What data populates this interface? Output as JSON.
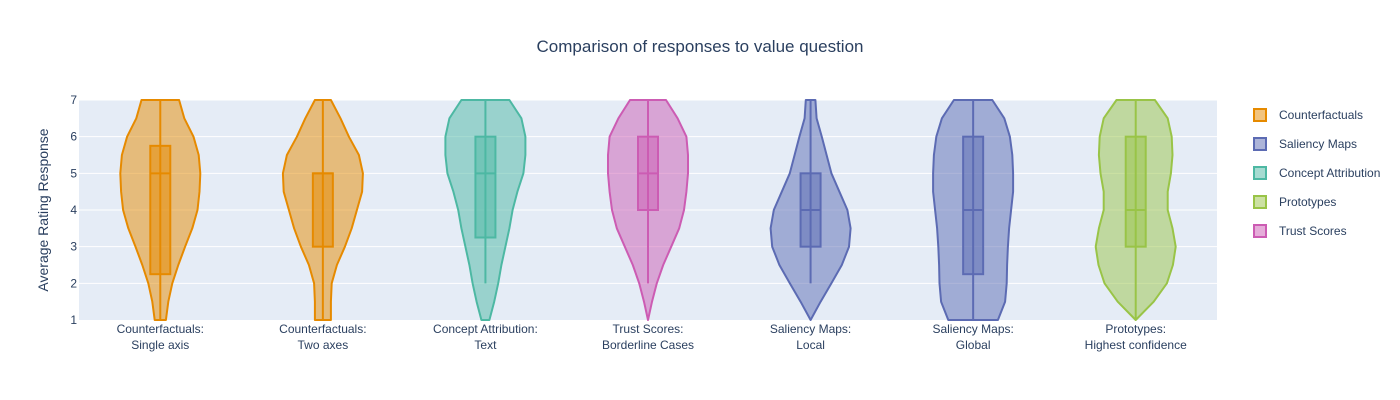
{
  "chart_data": {
    "type": "violin",
    "title": "Comparison of responses to value question",
    "ylabel": "Average Rating Response",
    "xlabel": "",
    "ylim": [
      1,
      7
    ],
    "yticks": [
      1,
      2,
      3,
      4,
      5,
      6,
      7
    ],
    "grid": true,
    "legend_position": "right",
    "legend": [
      {
        "name": "Counterfactuals",
        "color": "#E68A00"
      },
      {
        "name": "Saliency Maps",
        "color": "#5C6BB3"
      },
      {
        "name": "Concept Attribution",
        "color": "#4DB8A3"
      },
      {
        "name": "Prototypes",
        "color": "#99C447"
      },
      {
        "name": "Trust Scores",
        "color": "#CC5CB3"
      }
    ],
    "categories": [
      {
        "line1": "Counterfactuals:",
        "line2": "Single axis",
        "group": "Counterfactuals",
        "color": "#E68A00",
        "box": {
          "q1": 2.25,
          "median": 5,
          "q3": 5.75,
          "whisker_low": 1,
          "whisker_high": 7
        },
        "density": [
          [
            1,
            0.14
          ],
          [
            1.5,
            0.2
          ],
          [
            2,
            0.3
          ],
          [
            2.5,
            0.45
          ],
          [
            3,
            0.62
          ],
          [
            3.5,
            0.8
          ],
          [
            4,
            0.93
          ],
          [
            4.5,
            0.98
          ],
          [
            5,
            1.0
          ],
          [
            5.5,
            0.96
          ],
          [
            6,
            0.83
          ],
          [
            6.5,
            0.6
          ],
          [
            7,
            0.47
          ]
        ]
      },
      {
        "line1": "Counterfactuals:",
        "line2": "Two axes",
        "group": "Counterfactuals",
        "color": "#E68A00",
        "box": {
          "q1": 3,
          "median": 5,
          "q3": 5,
          "whisker_low": 1,
          "whisker_high": 7
        },
        "density": [
          [
            1,
            0.2
          ],
          [
            1.5,
            0.2
          ],
          [
            2,
            0.22
          ],
          [
            2.5,
            0.35
          ],
          [
            3,
            0.55
          ],
          [
            3.5,
            0.72
          ],
          [
            4,
            0.85
          ],
          [
            4.5,
            0.98
          ],
          [
            5,
            1.0
          ],
          [
            5.5,
            0.9
          ],
          [
            6,
            0.65
          ],
          [
            6.5,
            0.44
          ],
          [
            7,
            0.2
          ]
        ]
      },
      {
        "line1": "Concept Attribution:",
        "line2": "Text",
        "group": "Concept Attribution",
        "color": "#4DB8A3",
        "box": {
          "q1": 3.25,
          "median": 5,
          "q3": 6,
          "whisker_low": 2,
          "whisker_high": 7
        },
        "density": [
          [
            1,
            0.1
          ],
          [
            1.5,
            0.22
          ],
          [
            2,
            0.32
          ],
          [
            2.5,
            0.4
          ],
          [
            3,
            0.5
          ],
          [
            3.5,
            0.6
          ],
          [
            4,
            0.68
          ],
          [
            4.5,
            0.8
          ],
          [
            5,
            0.95
          ],
          [
            5.5,
            1.0
          ],
          [
            6,
            1.0
          ],
          [
            6.5,
            0.9
          ],
          [
            7,
            0.6
          ]
        ]
      },
      {
        "line1": "Trust Scores:",
        "line2": "Borderline Cases",
        "group": "Trust Scores",
        "color": "#CC5CB3",
        "box": {
          "q1": 4,
          "median": 5,
          "q3": 6,
          "whisker_low": 2,
          "whisker_high": 7
        },
        "density": [
          [
            1,
            0.0
          ],
          [
            1.5,
            0.1
          ],
          [
            2,
            0.22
          ],
          [
            2.5,
            0.38
          ],
          [
            3,
            0.58
          ],
          [
            3.5,
            0.78
          ],
          [
            4,
            0.9
          ],
          [
            4.5,
            0.96
          ],
          [
            5,
            1.0
          ],
          [
            5.5,
            1.0
          ],
          [
            6,
            0.96
          ],
          [
            6.5,
            0.74
          ],
          [
            7,
            0.45
          ]
        ]
      },
      {
        "line1": "Saliency Maps:",
        "line2": "Local",
        "group": "Saliency Maps",
        "color": "#5C6BB3",
        "box": {
          "q1": 3,
          "median": 4,
          "q3": 5,
          "whisker_low": 2,
          "whisker_high": 7
        },
        "density": [
          [
            1,
            0.0
          ],
          [
            1.5,
            0.25
          ],
          [
            2,
            0.52
          ],
          [
            2.5,
            0.78
          ],
          [
            3,
            0.96
          ],
          [
            3.5,
            1.0
          ],
          [
            4,
            0.92
          ],
          [
            4.5,
            0.72
          ],
          [
            5,
            0.52
          ],
          [
            5.5,
            0.4
          ],
          [
            6,
            0.28
          ],
          [
            6.5,
            0.15
          ],
          [
            7,
            0.12
          ]
        ]
      },
      {
        "line1": "Saliency Maps:",
        "line2": "Global",
        "group": "Saliency Maps",
        "color": "#5C6BB3",
        "box": {
          "q1": 2.25,
          "median": 4,
          "q3": 6,
          "whisker_low": 1,
          "whisker_high": 7
        },
        "density": [
          [
            1,
            0.62
          ],
          [
            1.5,
            0.8
          ],
          [
            2,
            0.84
          ],
          [
            2.5,
            0.85
          ],
          [
            3,
            0.87
          ],
          [
            3.5,
            0.9
          ],
          [
            4,
            0.95
          ],
          [
            4.5,
            1.0
          ],
          [
            5,
            1.0
          ],
          [
            5.5,
            0.98
          ],
          [
            6,
            0.92
          ],
          [
            6.5,
            0.78
          ],
          [
            7,
            0.48
          ]
        ]
      },
      {
        "line1": "Prototypes:",
        "line2": "Highest confidence",
        "group": "Prototypes",
        "color": "#99C447",
        "box": {
          "q1": 3,
          "median": 4,
          "q3": 6,
          "whisker_low": 1,
          "whisker_high": 7
        },
        "density": [
          [
            1,
            0.0
          ],
          [
            1.5,
            0.45
          ],
          [
            2,
            0.78
          ],
          [
            2.5,
            0.93
          ],
          [
            3,
            1.0
          ],
          [
            3.5,
            0.92
          ],
          [
            4,
            0.8
          ],
          [
            4.5,
            0.8
          ],
          [
            5,
            0.88
          ],
          [
            5.5,
            0.92
          ],
          [
            6,
            0.9
          ],
          [
            6.5,
            0.8
          ],
          [
            7,
            0.48
          ]
        ]
      }
    ]
  }
}
